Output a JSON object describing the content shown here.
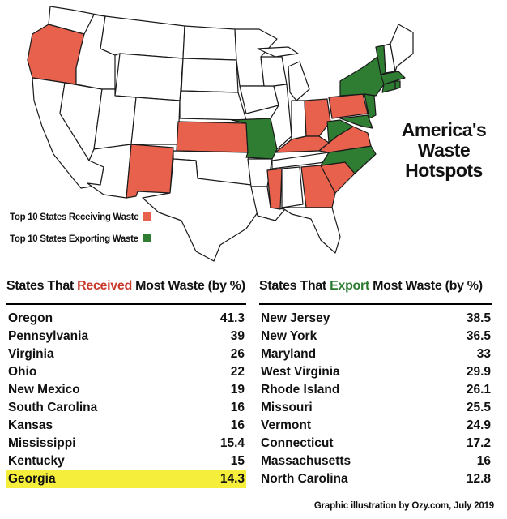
{
  "headline": [
    "America's",
    "Waste",
    "Hotspots"
  ],
  "legend": {
    "receiving": {
      "label": "Top 10 States Receiving Waste",
      "color": "#e8614d"
    },
    "exporting": {
      "label": "Top 10 States Exporting Waste",
      "color": "#2f7d32"
    }
  },
  "map": {
    "receiving_states": [
      "Oregon",
      "Pennsylvania",
      "Virginia",
      "Ohio",
      "New Mexico",
      "South Carolina",
      "Kansas",
      "Mississippi",
      "Kentucky",
      "Georgia"
    ],
    "exporting_states": [
      "New Jersey",
      "New York",
      "Maryland",
      "West Virginia",
      "Rhode Island",
      "Missouri",
      "Vermont",
      "Connecticut",
      "Massachusetts",
      "North Carolina"
    ]
  },
  "received_table": {
    "title_pre": "States That ",
    "title_highlight": "Received",
    "title_post": " Most Waste (by %)",
    "rows": [
      {
        "state": "Oregon",
        "value": "41.3"
      },
      {
        "state": "Pennsylvania",
        "value": "39"
      },
      {
        "state": "Virginia",
        "value": "26"
      },
      {
        "state": "Ohio",
        "value": "22"
      },
      {
        "state": "New Mexico",
        "value": "19"
      },
      {
        "state": "South Carolina",
        "value": "16"
      },
      {
        "state": "Kansas",
        "value": "16"
      },
      {
        "state": "Mississippi",
        "value": "15.4"
      },
      {
        "state": "Kentucky",
        "value": "15"
      },
      {
        "state": "Georgia",
        "value": "14.3",
        "highlight": true
      }
    ]
  },
  "export_table": {
    "title_pre": "States That ",
    "title_highlight": "Export",
    "title_post": " Most Waste (by %)",
    "rows": [
      {
        "state": "New Jersey",
        "value": "38.5"
      },
      {
        "state": "New York",
        "value": "36.5"
      },
      {
        "state": "Maryland",
        "value": "33"
      },
      {
        "state": "West Virginia",
        "value": "29.9"
      },
      {
        "state": "Rhode Island",
        "value": "26.1"
      },
      {
        "state": "Missouri",
        "value": "25.5"
      },
      {
        "state": "Vermont",
        "value": "24.9"
      },
      {
        "state": "Connecticut",
        "value": "17.2"
      },
      {
        "state": "Massachusetts",
        "value": "16"
      },
      {
        "state": "North Carolina",
        "value": "12.8"
      }
    ]
  },
  "credit": "Graphic illustration by Ozy.com, July 2019"
}
